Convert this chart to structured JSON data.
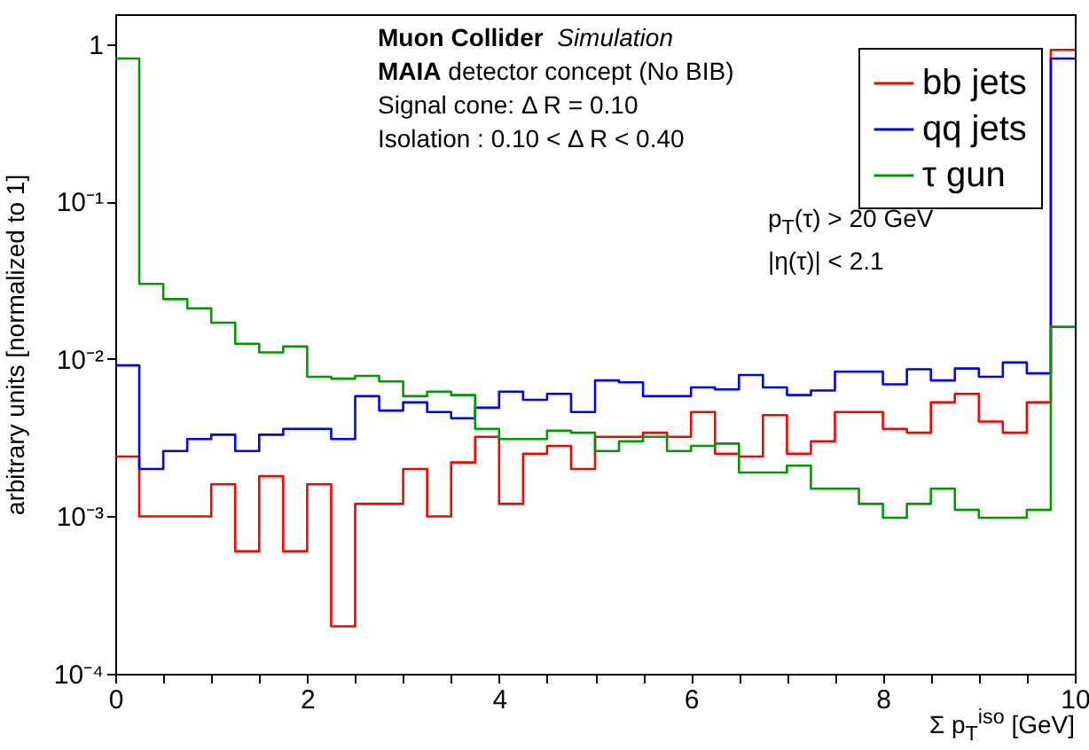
{
  "chart_data": {
    "type": "histogram",
    "xlabel": "Σ p$_{T}$$^{iso}$ [GeV]",
    "ylabel": "arbitrary units [normalized to 1]",
    "bins": [
      0,
      0.25,
      0.5,
      0.75,
      1,
      1.25,
      1.5,
      1.75,
      2,
      2.25,
      2.5,
      2.75,
      3,
      3.25,
      3.5,
      3.75,
      4,
      4.25,
      4.5,
      4.75,
      5,
      5.25,
      5.5,
      5.75,
      6,
      6.25,
      6.5,
      6.75,
      7,
      7.25,
      7.5,
      7.75,
      8,
      8.25,
      8.5,
      8.75,
      9,
      9.25,
      9.5,
      9.75,
      10
    ],
    "series": [
      {
        "name": "bb jets",
        "color": "#ff0000",
        "values": [
          0.0024,
          0.001,
          0.001,
          0.001,
          0.0016,
          0.0006,
          0.0018,
          0.0006,
          0.0016,
          0.0002,
          0.0012,
          0.0012,
          0.002,
          0.001,
          0.0022,
          0.0032,
          0.0012,
          0.0025,
          0.0028,
          0.002,
          0.0032,
          0.0032,
          0.0034,
          0.0032,
          0.0046,
          0.0025,
          0.0024,
          0.0044,
          0.0025,
          0.003,
          0.0046,
          0.0046,
          0.0036,
          0.0034,
          0.0053,
          0.006,
          0.004,
          0.0034,
          0.0053,
          0.92
        ]
      },
      {
        "name": "qq jets",
        "color": "#0000ff",
        "values": [
          0.0091,
          0.002,
          0.0026,
          0.0031,
          0.0033,
          0.0026,
          0.0033,
          0.0036,
          0.0036,
          0.0031,
          0.0058,
          0.0047,
          0.0053,
          0.0046,
          0.0042,
          0.0049,
          0.0062,
          0.0055,
          0.006,
          0.0046,
          0.0073,
          0.0071,
          0.0058,
          0.0058,
          0.0066,
          0.0064,
          0.0079,
          0.0066,
          0.0059,
          0.0063,
          0.0083,
          0.0083,
          0.0069,
          0.0086,
          0.0073,
          0.0087,
          0.0077,
          0.0095,
          0.0081,
          0.81
        ]
      },
      {
        "name": "τ gun",
        "color": "#009900",
        "values": [
          0.81,
          0.03,
          0.024,
          0.021,
          0.017,
          0.0125,
          0.011,
          0.012,
          0.0077,
          0.0075,
          0.0078,
          0.0072,
          0.0058,
          0.0062,
          0.0059,
          0.0036,
          0.0031,
          0.0031,
          0.0035,
          0.0034,
          0.0026,
          0.003,
          0.0032,
          0.0026,
          0.0028,
          0.0029,
          0.0019,
          0.0019,
          0.0021,
          0.0015,
          0.0015,
          0.0012,
          0.00098,
          0.0012,
          0.0015,
          0.0011,
          0.00098,
          0.00098,
          0.0011,
          0.016
        ]
      }
    ],
    "xlim": [
      0,
      10
    ],
    "xticks": [
      0,
      {
        "value": 0.5,
        "label": null
      },
      {
        "value": 1,
        "label": null
      },
      {
        "value": 1.5,
        "label": null
      },
      2,
      {
        "value": 2.5,
        "label": null
      },
      {
        "value": 3,
        "label": null
      },
      {
        "value": 3.5,
        "label": null
      },
      4,
      {
        "value": 4.5,
        "label": null
      },
      {
        "value": 5,
        "label": null
      },
      {
        "value": 5.5,
        "label": null
      },
      6,
      {
        "value": 6.5,
        "label": null
      },
      {
        "value": 7,
        "label": null
      },
      {
        "value": 7.5,
        "label": null
      },
      8,
      {
        "value": 8.5,
        "label": null
      },
      {
        "value": 9,
        "label": null
      },
      {
        "value": 9.5,
        "label": null
      },
      10
    ],
    "ylim": [
      0.0001,
      1.55
    ],
    "yticks": [
      {
        "value": 0.0001,
        "label": "10⁻⁴"
      },
      {
        "value": 0.001,
        "label": "10⁻³"
      },
      {
        "value": 0.01,
        "label": "10⁻²"
      },
      {
        "value": 0.1,
        "label": "10⁻¹"
      },
      1
    ],
    "log": "y",
    "grid": false,
    "legend": "top right",
    "annotations": [
      "Muon Collider",
      "Simulation",
      "MAIA",
      "detector concept (No BIB)",
      "Signal cone: Δ R = 0.10",
      "Isolation : 0.10 <  Δ R < 0.40",
      "p$_{T}$(τ) > 20 GeV",
      "|η(τ)| < 2.1"
    ]
  }
}
